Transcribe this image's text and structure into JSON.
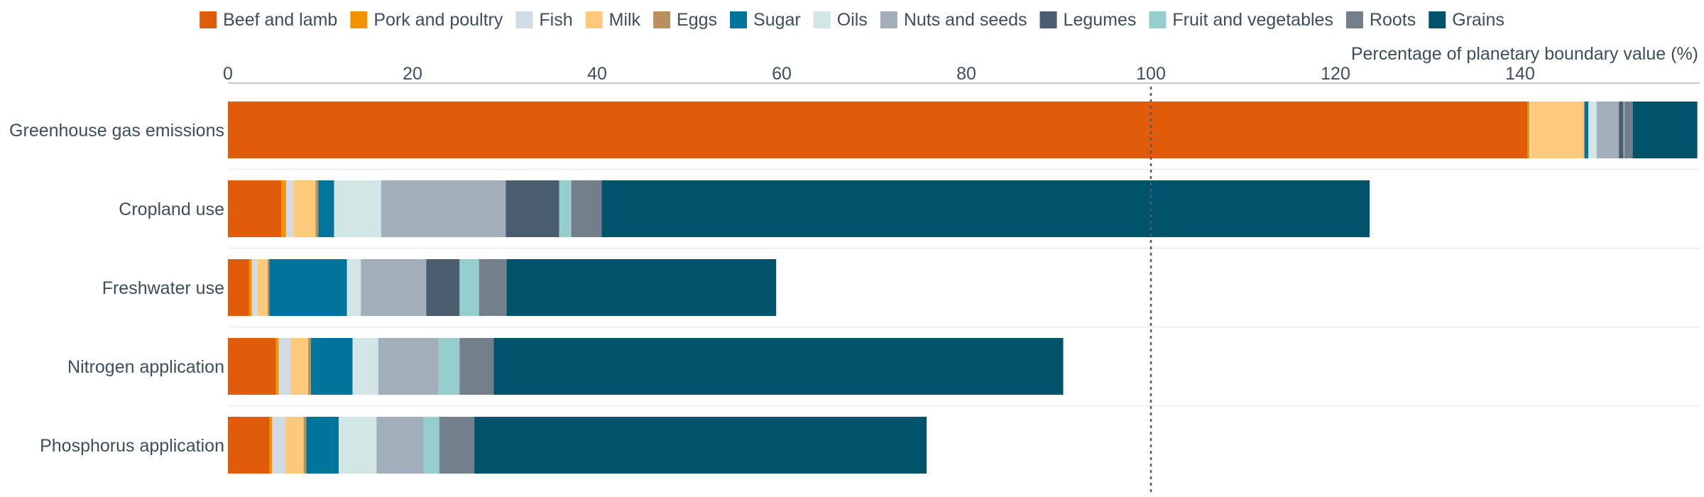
{
  "chart_data": {
    "type": "bar",
    "orientation": "horizontal",
    "stacked": true,
    "xlabel": "Percentage of planetary boundary value (%)",
    "xlim": [
      0,
      159
    ],
    "xticks": [
      0,
      20,
      40,
      60,
      80,
      100,
      120,
      140
    ],
    "reference_line": {
      "x": 100,
      "style": "dotted"
    },
    "legend_position": "top",
    "grid": "horizontal row separators",
    "categories": [
      "Greenhouse gas emissions",
      "Cropland use",
      "Freshwater use",
      "Nitrogen application",
      "Phosphorus application"
    ],
    "series": [
      {
        "name": "Beef and lamb",
        "color": "#e05c0b",
        "values": [
          140.8,
          5.8,
          2.3,
          5.2,
          4.5
        ]
      },
      {
        "name": "Pork and poultry",
        "color": "#f39200",
        "values": [
          0.2,
          0.5,
          0.3,
          0.3,
          0.3
        ]
      },
      {
        "name": "Fish",
        "color": "#d0dbe6",
        "values": [
          0.1,
          0.8,
          0.6,
          1.3,
          1.4
        ]
      },
      {
        "name": "Milk",
        "color": "#fdc97a",
        "values": [
          5.8,
          2.4,
          1.1,
          1.9,
          2.0
        ]
      },
      {
        "name": "Eggs",
        "color": "#b8905e",
        "values": [
          0.1,
          0.3,
          0.2,
          0.3,
          0.3
        ]
      },
      {
        "name": "Sugar",
        "color": "#00749a",
        "values": [
          0.4,
          1.7,
          8.4,
          4.5,
          3.5
        ]
      },
      {
        "name": "Oils",
        "color": "#d2e6e5",
        "values": [
          0.9,
          5.1,
          1.5,
          2.8,
          4.1
        ]
      },
      {
        "name": "Nuts and seeds",
        "color": "#a2afba",
        "values": [
          2.4,
          13.5,
          7.1,
          6.5,
          5.1
        ]
      },
      {
        "name": "Legumes",
        "color": "#4a5e70",
        "values": [
          0.5,
          5.8,
          3.6,
          0.0,
          0.0
        ]
      },
      {
        "name": "Fruit and vegetables",
        "color": "#96cdcd",
        "values": [
          0.1,
          1.3,
          2.1,
          2.3,
          1.7
        ]
      },
      {
        "name": "Roots",
        "color": "#747f8c",
        "values": [
          0.9,
          3.3,
          3.0,
          3.7,
          3.8
        ]
      },
      {
        "name": "Grains",
        "color": "#00536b",
        "values": [
          7.0,
          83.2,
          29.2,
          61.7,
          49.0
        ]
      }
    ]
  }
}
